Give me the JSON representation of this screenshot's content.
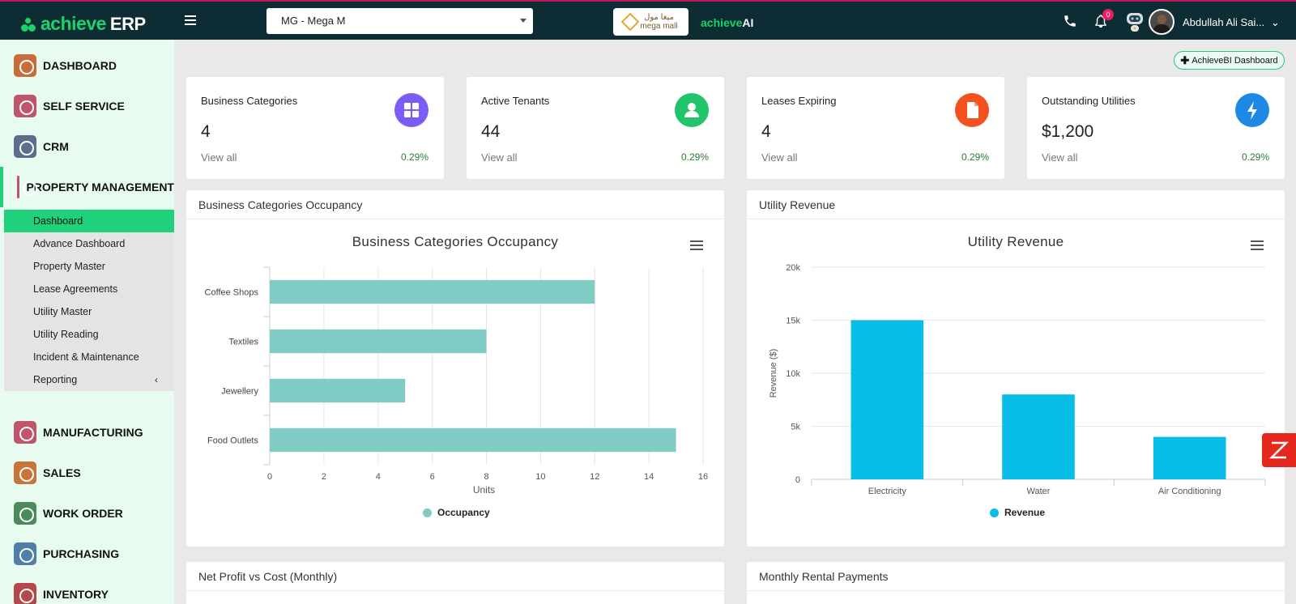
{
  "brand": {
    "name_green": "achieve",
    "name_white": "ERP"
  },
  "property_selector": {
    "value": "MG - Mega M"
  },
  "client_logo": {
    "line1": "ميغا مول",
    "line2": "mega mall"
  },
  "ai_logo": {
    "green": "achieve",
    "white": "AI"
  },
  "header": {
    "notification_count": "0",
    "user_name": "Abdullah Ali Sai...",
    "user_chevron": "⌄"
  },
  "sidebar": {
    "items": [
      {
        "label": "DASHBOARD",
        "color": "#c96b3a"
      },
      {
        "label": "SELF SERVICE",
        "color": "#c0546a"
      },
      {
        "label": "CRM",
        "color": "#5b6e8c"
      },
      {
        "label": "PROPERTY MANAGEMENT",
        "color": "#c0546a"
      },
      {
        "label": "MANUFACTURING",
        "color": "#c0546a"
      },
      {
        "label": "SALES",
        "color": "#c9743a"
      },
      {
        "label": "WORK ORDER",
        "color": "#4b8a5a"
      },
      {
        "label": "PURCHASING",
        "color": "#4f7ea8"
      },
      {
        "label": "INVENTORY",
        "color": "#b5474d"
      }
    ],
    "submenu": [
      "Dashboard",
      "Advance Dashboard",
      "Property Master",
      "Lease Agreements",
      "Utility Master",
      "Utility Reading",
      "Incident & Maintenance",
      "Reporting"
    ],
    "reporting_chevron": "‹"
  },
  "bi_button": {
    "label": "AchieveBI Dashboard"
  },
  "stats": [
    {
      "label": "Business Categories",
      "value": "4",
      "link": "View all",
      "change": "0.29%",
      "icon": "grid-icon",
      "color": "#7b5cf5"
    },
    {
      "label": "Active Tenants",
      "value": "44",
      "link": "View all",
      "change": "0.29%",
      "icon": "user-icon",
      "color": "#1fc46b"
    },
    {
      "label": "Leases Expiring",
      "value": "4",
      "link": "View all",
      "change": "0.29%",
      "icon": "document-icon",
      "color": "#f4511e"
    },
    {
      "label": "Outstanding Utilities",
      "value": "$1,200",
      "link": "View all",
      "change": "0.29%",
      "icon": "bolt-icon",
      "color": "#1e88e5"
    }
  ],
  "panels": {
    "occupancy": {
      "header": "Business Categories Occupancy"
    },
    "utility": {
      "header": "Utility Revenue"
    },
    "net_profit": {
      "header": "Net Profit vs Cost (Monthly)"
    },
    "rental": {
      "header": "Monthly Rental Payments"
    }
  },
  "chart_data": [
    {
      "type": "bar",
      "orientation": "horizontal",
      "title": "Business Categories Occupancy",
      "categories": [
        "Coffee Shops",
        "Textiles",
        "Jewellery",
        "Food Outlets"
      ],
      "series": [
        {
          "name": "Occupancy",
          "values": [
            12,
            8,
            5,
            15
          ],
          "color": "#80cbc4"
        }
      ],
      "xlabel": "Units",
      "ylabel": "",
      "xlim": [
        0,
        16
      ],
      "ticks": [
        "0",
        "2",
        "4",
        "6",
        "8",
        "10",
        "12",
        "14",
        "16"
      ],
      "grid": true,
      "legend": "bottom"
    },
    {
      "type": "bar",
      "title": "Utility Revenue",
      "categories": [
        "Electricity",
        "Water",
        "Air Conditioning"
      ],
      "series": [
        {
          "name": "Revenue",
          "values": [
            15000,
            8000,
            4000
          ],
          "color": "#08bde6"
        }
      ],
      "xlabel": "",
      "ylabel": "Revenue ($)",
      "ylim": [
        0,
        20000
      ],
      "ticks": [
        "0",
        "5k",
        "10k",
        "15k",
        "20k"
      ],
      "grid": true,
      "legend": "bottom"
    }
  ]
}
